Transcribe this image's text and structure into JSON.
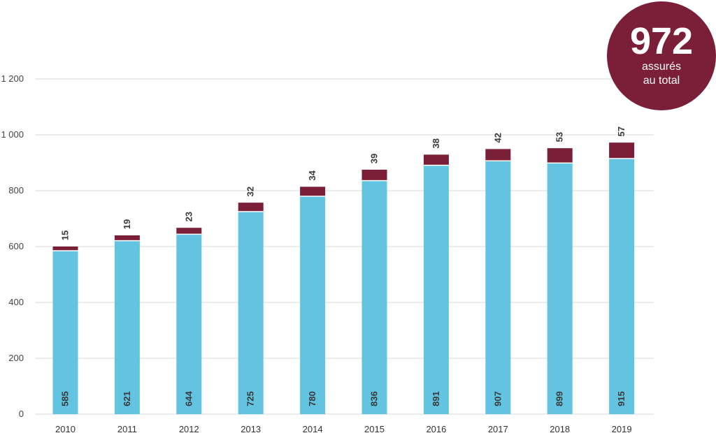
{
  "badge": {
    "value": "972",
    "line1": "assurés",
    "line2": "au total",
    "color": "#7b1f38"
  },
  "chart_data": {
    "type": "bar",
    "stacked": true,
    "categories": [
      "2010",
      "2011",
      "2012",
      "2013",
      "2014",
      "2015",
      "2016",
      "2017",
      "2018",
      "2019"
    ],
    "series": [
      {
        "values": [
          585,
          621,
          644,
          725,
          780,
          836,
          891,
          907,
          899,
          915
        ],
        "color": "#63c4e1"
      },
      {
        "values": [
          15,
          19,
          23,
          32,
          34,
          39,
          38,
          42,
          53,
          57
        ],
        "color": "#7b1f38"
      }
    ],
    "ylim": [
      0,
      1200
    ],
    "yticks": [
      0,
      200,
      400,
      600,
      800,
      1000,
      1200
    ],
    "ytick_labels": [
      "0",
      "200",
      "400",
      "600",
      "800",
      "1 000",
      "1 200"
    ],
    "grid": true,
    "title": "",
    "xlabel": "",
    "ylabel": ""
  }
}
